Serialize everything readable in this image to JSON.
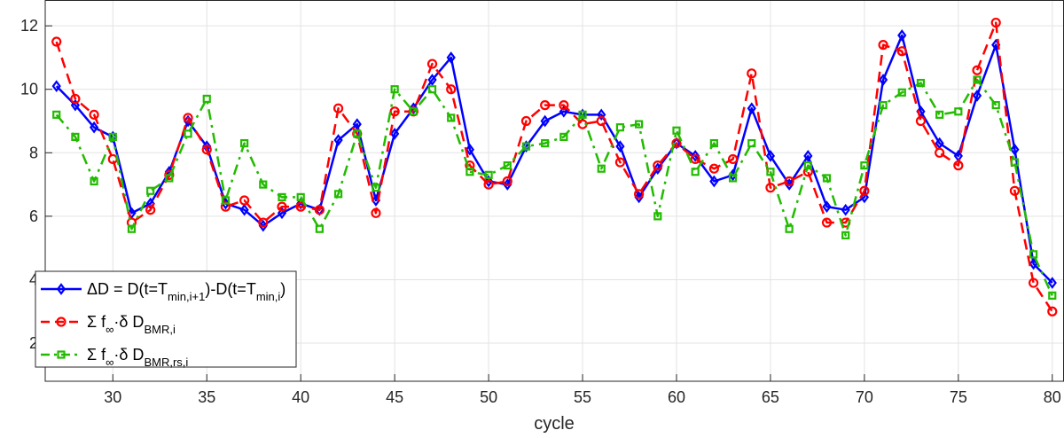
{
  "chart_data": {
    "type": "line",
    "xlabel": "cycle",
    "ylabel": "",
    "xlim": [
      26.4,
      80.6
    ],
    "ylim": [
      0.8,
      12.8
    ],
    "xticks": [
      30,
      35,
      40,
      45,
      50,
      55,
      60,
      65,
      70,
      75,
      80
    ],
    "yticks": [
      2,
      4,
      6,
      8,
      10,
      12
    ],
    "grid": true,
    "legend_position": "bottom-left",
    "x": [
      27,
      28,
      29,
      30,
      31,
      32,
      33,
      34,
      35,
      36,
      37,
      38,
      39,
      40,
      41,
      42,
      43,
      44,
      45,
      46,
      47,
      48,
      49,
      50,
      51,
      52,
      53,
      54,
      55,
      56,
      57,
      58,
      59,
      60,
      61,
      62,
      63,
      64,
      65,
      66,
      67,
      68,
      69,
      70,
      71,
      72,
      73,
      74,
      75,
      76,
      77,
      78,
      79,
      80
    ],
    "series": [
      {
        "name": "ΔD = D(t=T_min,i+1)-D(t=T_min,i)",
        "legend_parts": [
          "ΔD = D(t=T",
          "min,i+1",
          ")-D(t=T",
          "min,i",
          ")"
        ],
        "color": "#0000ff",
        "line_style": "solid",
        "marker": "diamond",
        "values": [
          10.1,
          9.5,
          8.8,
          8.5,
          6.1,
          6.4,
          7.4,
          9.0,
          8.2,
          6.4,
          6.2,
          5.7,
          6.1,
          6.4,
          6.2,
          8.4,
          8.9,
          6.5,
          8.6,
          9.4,
          10.3,
          11.0,
          8.1,
          7.1,
          7.0,
          8.2,
          9.0,
          9.3,
          9.2,
          9.2,
          8.2,
          6.6,
          7.5,
          8.3,
          7.9,
          7.1,
          7.3,
          9.4,
          7.9,
          7.0,
          7.9,
          6.3,
          6.2,
          6.6,
          10.3,
          11.7,
          9.3,
          8.3,
          7.9,
          9.8,
          11.4,
          8.1,
          4.5,
          3.9
        ]
      },
      {
        "name": "Σ f∞·δ D_BMR,i",
        "legend_parts": [
          "Σ f",
          "∞",
          "·δ D",
          "BMR,i",
          ""
        ],
        "color": "#ff0000",
        "line_style": "dashed",
        "marker": "circle",
        "values": [
          11.5,
          9.7,
          9.2,
          7.8,
          5.8,
          6.2,
          7.3,
          9.1,
          8.1,
          6.3,
          6.5,
          5.8,
          6.3,
          6.3,
          6.2,
          9.4,
          8.6,
          6.1,
          9.3,
          9.3,
          10.8,
          10.0,
          7.6,
          7.0,
          7.1,
          9.0,
          9.5,
          9.5,
          8.9,
          9.0,
          7.7,
          6.7,
          7.6,
          8.3,
          7.8,
          7.5,
          7.8,
          10.5,
          6.9,
          7.1,
          7.4,
          5.8,
          5.8,
          6.8,
          11.4,
          11.2,
          9.0,
          8.0,
          7.6,
          10.6,
          12.1,
          6.8,
          3.9,
          3.0
        ]
      },
      {
        "name": "Σ f∞·δ D_BMR,rs,i",
        "legend_parts": [
          "Σ f",
          "∞",
          "·δ D",
          "BMR,rs,i",
          ""
        ],
        "color": "#22bb00",
        "line_style": "dashdot",
        "marker": "square",
        "values": [
          9.2,
          8.5,
          7.1,
          8.5,
          5.6,
          6.8,
          7.2,
          8.6,
          9.7,
          6.5,
          8.3,
          7.0,
          6.6,
          6.6,
          5.6,
          6.7,
          8.6,
          6.9,
          10.0,
          9.3,
          10.0,
          9.1,
          7.4,
          7.3,
          7.6,
          8.2,
          8.3,
          8.5,
          9.2,
          7.5,
          8.8,
          8.9,
          6.0,
          8.7,
          7.4,
          8.3,
          7.2,
          8.3,
          7.4,
          5.6,
          7.6,
          7.2,
          5.4,
          7.6,
          9.5,
          9.9,
          10.2,
          9.2,
          9.3,
          10.3,
          9.5,
          7.7,
          4.8,
          3.5
        ]
      }
    ]
  }
}
